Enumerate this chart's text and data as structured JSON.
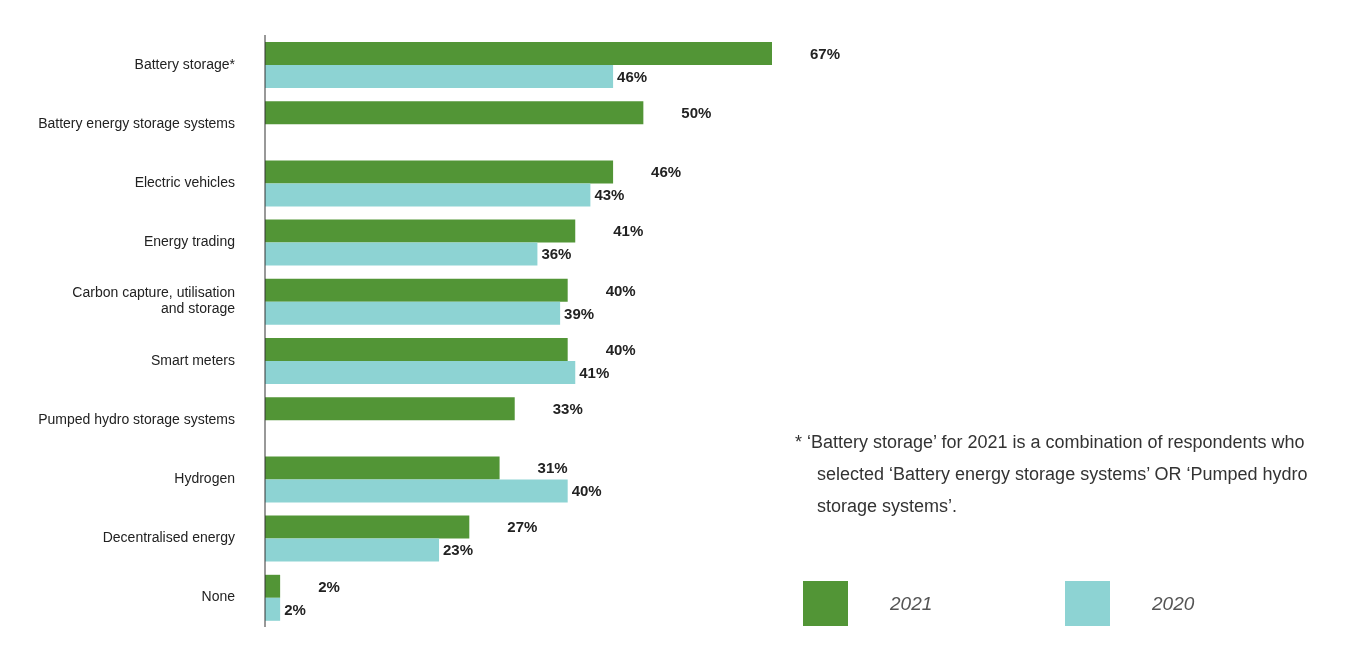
{
  "chart_data": {
    "type": "bar",
    "orientation": "horizontal",
    "categories": [
      "Battery storage*",
      "Battery energy storage systems",
      "Electric vehicles",
      "Energy trading",
      "Carbon capture, utilisation and storage",
      "Smart meters",
      "Pumped hydro storage systems",
      "Hydrogen",
      "Decentralised energy",
      "None"
    ],
    "series": [
      {
        "name": "2021",
        "color": "#529536",
        "values": [
          67,
          50,
          46,
          41,
          40,
          40,
          33,
          31,
          27,
          2
        ],
        "value_labels": [
          "67%",
          "50%",
          "46%",
          "41%",
          "40%",
          "40%",
          "33%",
          "31%",
          "27%",
          "2%"
        ]
      },
      {
        "name": "2020",
        "color": "#8dd3d3",
        "values": [
          46,
          null,
          43,
          36,
          39,
          41,
          null,
          40,
          23,
          2
        ],
        "value_labels": [
          "46%",
          null,
          "43%",
          "36%",
          "39%",
          "41%",
          null,
          "40%",
          "23%",
          "2%"
        ]
      }
    ],
    "legend": "bottom right",
    "grid": false,
    "annotations": [
      "* ‘Battery storage’ for 2021 is a combination of respondents who selected ‘Battery energy storage systems’ OR ‘Pumped hydro storage systems’."
    ]
  }
}
